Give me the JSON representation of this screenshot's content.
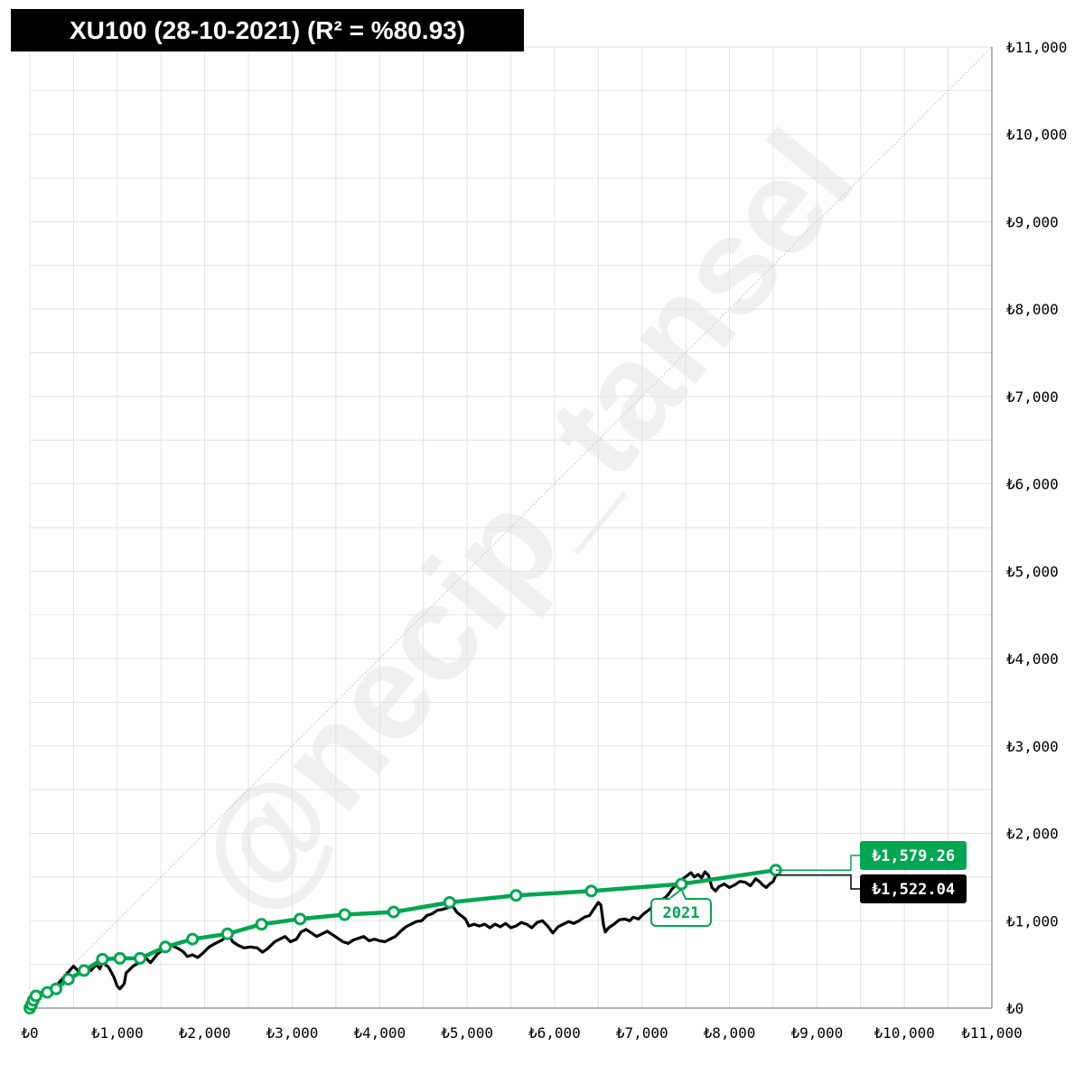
{
  "title": "XU100 (28-10-2021) (R² = %80.93)",
  "watermark": "@necip_tansel",
  "colors": {
    "fit": "#00a651",
    "price": "#000000",
    "grid": "#e2e2e2",
    "diagonal": "#c8c8c8"
  },
  "chart_data": {
    "type": "line",
    "title": "XU100 (28-10-2021) (R² = %80.93)",
    "xlabel": "",
    "ylabel": "",
    "xlim": [
      0,
      11000
    ],
    "ylim": [
      0,
      11000
    ],
    "grid": true,
    "y_axis_position": "right",
    "x_ticks": [
      0,
      1000,
      2000,
      3000,
      4000,
      5000,
      6000,
      7000,
      8000,
      9000,
      10000,
      11000
    ],
    "x_tick_labels": [
      "₺0",
      "₺1,000",
      "₺2,000",
      "₺3,000",
      "₺4,000",
      "₺5,000",
      "₺6,000",
      "₺7,000",
      "₺8,000",
      "₺9,000",
      "₺10,000",
      "₺11,000"
    ],
    "y_ticks": [
      0,
      1000,
      2000,
      3000,
      4000,
      5000,
      6000,
      7000,
      8000,
      9000,
      10000,
      11000
    ],
    "y_tick_labels": [
      "₺0",
      "₺1,000",
      "₺2,000",
      "₺3,000",
      "₺4,000",
      "₺5,000",
      "₺6,000",
      "₺7,000",
      "₺8,000",
      "₺9,000",
      "₺10,000",
      "₺11,000"
    ],
    "series": [
      {
        "role": "fit",
        "color": "#00a651",
        "markers": [
          [
            0,
            0
          ],
          [
            20,
            40
          ],
          [
            40,
            90
          ],
          [
            70,
            140
          ],
          [
            200,
            180
          ],
          [
            300,
            220
          ],
          [
            440,
            330
          ],
          [
            620,
            430
          ],
          [
            830,
            560
          ],
          [
            1030,
            570
          ],
          [
            1260,
            570
          ],
          [
            1550,
            700
          ],
          [
            1860,
            790
          ],
          [
            2260,
            850
          ],
          [
            2650,
            960
          ],
          [
            3090,
            1020
          ],
          [
            3600,
            1070
          ],
          [
            4160,
            1100
          ],
          [
            4800,
            1210
          ],
          [
            5560,
            1290
          ],
          [
            6420,
            1340
          ],
          [
            7450,
            1420
          ],
          [
            8530,
            1579.26
          ]
        ],
        "last_value_label": "₺1,579.26"
      },
      {
        "role": "price",
        "color": "#000000",
        "points": [
          [
            0,
            0
          ],
          [
            60,
            130
          ],
          [
            150,
            190
          ],
          [
            300,
            250
          ],
          [
            420,
            390
          ],
          [
            500,
            480
          ],
          [
            560,
            420
          ],
          [
            620,
            480
          ],
          [
            700,
            430
          ],
          [
            760,
            500
          ],
          [
            800,
            450
          ],
          [
            830,
            520
          ],
          [
            900,
            470
          ],
          [
            960,
            360
          ],
          [
            1000,
            250
          ],
          [
            1030,
            220
          ],
          [
            1080,
            280
          ],
          [
            1100,
            400
          ],
          [
            1130,
            430
          ],
          [
            1180,
            480
          ],
          [
            1250,
            520
          ],
          [
            1320,
            580
          ],
          [
            1380,
            520
          ],
          [
            1460,
            620
          ],
          [
            1540,
            680
          ],
          [
            1620,
            720
          ],
          [
            1700,
            680
          ],
          [
            1760,
            640
          ],
          [
            1800,
            590
          ],
          [
            1860,
            610
          ],
          [
            1920,
            580
          ],
          [
            1980,
            630
          ],
          [
            2050,
            700
          ],
          [
            2120,
            740
          ],
          [
            2200,
            780
          ],
          [
            2270,
            840
          ],
          [
            2320,
            760
          ],
          [
            2380,
            720
          ],
          [
            2450,
            690
          ],
          [
            2520,
            700
          ],
          [
            2600,
            690
          ],
          [
            2660,
            640
          ],
          [
            2720,
            680
          ],
          [
            2800,
            760
          ],
          [
            2860,
            790
          ],
          [
            2920,
            820
          ],
          [
            2980,
            760
          ],
          [
            3050,
            790
          ],
          [
            3100,
            870
          ],
          [
            3160,
            900
          ],
          [
            3220,
            860
          ],
          [
            3280,
            820
          ],
          [
            3340,
            850
          ],
          [
            3400,
            880
          ],
          [
            3460,
            840
          ],
          [
            3520,
            800
          ],
          [
            3580,
            760
          ],
          [
            3640,
            740
          ],
          [
            3700,
            780
          ],
          [
            3760,
            800
          ],
          [
            3820,
            820
          ],
          [
            3880,
            770
          ],
          [
            3940,
            790
          ],
          [
            4000,
            770
          ],
          [
            4060,
            760
          ],
          [
            4120,
            790
          ],
          [
            4180,
            820
          ],
          [
            4240,
            880
          ],
          [
            4300,
            930
          ],
          [
            4360,
            960
          ],
          [
            4420,
            990
          ],
          [
            4480,
            1000
          ],
          [
            4540,
            1060
          ],
          [
            4600,
            1080
          ],
          [
            4660,
            1120
          ],
          [
            4720,
            1130
          ],
          [
            4780,
            1150
          ],
          [
            4830,
            1180
          ],
          [
            4880,
            1100
          ],
          [
            4930,
            1060
          ],
          [
            4980,
            1020
          ],
          [
            5020,
            940
          ],
          [
            5080,
            960
          ],
          [
            5140,
            940
          ],
          [
            5200,
            960
          ],
          [
            5260,
            920
          ],
          [
            5320,
            960
          ],
          [
            5380,
            930
          ],
          [
            5440,
            970
          ],
          [
            5500,
            920
          ],
          [
            5560,
            940
          ],
          [
            5620,
            980
          ],
          [
            5680,
            960
          ],
          [
            5740,
            920
          ],
          [
            5800,
            980
          ],
          [
            5860,
            1000
          ],
          [
            5920,
            940
          ],
          [
            5980,
            860
          ],
          [
            6040,
            930
          ],
          [
            6100,
            960
          ],
          [
            6160,
            990
          ],
          [
            6220,
            970
          ],
          [
            6280,
            1000
          ],
          [
            6340,
            1040
          ],
          [
            6400,
            1060
          ],
          [
            6460,
            1150
          ],
          [
            6500,
            1210
          ],
          [
            6530,
            1180
          ],
          [
            6560,
            950
          ],
          [
            6580,
            870
          ],
          [
            6620,
            920
          ],
          [
            6680,
            960
          ],
          [
            6740,
            1010
          ],
          [
            6800,
            1020
          ],
          [
            6860,
            1000
          ],
          [
            6900,
            1040
          ],
          [
            6960,
            1020
          ],
          [
            7020,
            1080
          ],
          [
            7060,
            1110
          ],
          [
            7100,
            1140
          ],
          [
            7140,
            1160
          ],
          [
            7180,
            1220
          ],
          [
            7220,
            1240
          ],
          [
            7260,
            1260
          ],
          [
            7300,
            1300
          ],
          [
            7340,
            1360
          ],
          [
            7400,
            1420
          ],
          [
            7440,
            1450
          ],
          [
            7480,
            1490
          ],
          [
            7520,
            1520
          ],
          [
            7560,
            1550
          ],
          [
            7600,
            1500
          ],
          [
            7640,
            1530
          ],
          [
            7680,
            1490
          ],
          [
            7720,
            1560
          ],
          [
            7760,
            1520
          ],
          [
            7800,
            1380
          ],
          [
            7840,
            1340
          ],
          [
            7880,
            1390
          ],
          [
            7940,
            1420
          ],
          [
            8000,
            1380
          ],
          [
            8060,
            1410
          ],
          [
            8120,
            1450
          ],
          [
            8180,
            1440
          ],
          [
            8240,
            1400
          ],
          [
            8300,
            1480
          ],
          [
            8340,
            1450
          ],
          [
            8380,
            1410
          ],
          [
            8420,
            1380
          ],
          [
            8460,
            1420
          ],
          [
            8500,
            1450
          ],
          [
            8530,
            1522.04
          ]
        ],
        "last_value_label": "₺1,522.04"
      }
    ],
    "annotations": [
      {
        "text": "2021",
        "x": 7450,
        "y": 1420,
        "color": "#00a651"
      },
      {
        "text": "₺1,579.26",
        "series": "fit",
        "color": "#00a651"
      },
      {
        "text": "₺1,522.04",
        "series": "price",
        "color": "#000000"
      }
    ]
  }
}
